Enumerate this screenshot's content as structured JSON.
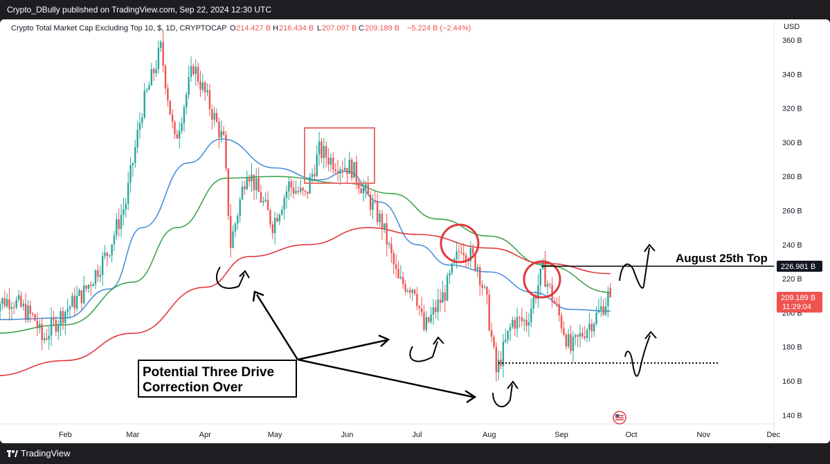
{
  "header": {
    "published": "Crypto_DBully published on TradingView.com, Sep 22, 2024 12:30 UTC"
  },
  "legend": {
    "symbol": "Crypto Total Market Cap Excluding Top 10, $, 1D, CRYPTOCAP",
    "open_label": "O",
    "open": "214.427 B",
    "high_label": "H",
    "high": "216.434 B",
    "low_label": "L",
    "low": "207.097 B",
    "close_label": "C",
    "close": "209.189 B",
    "change": "−5.224 B (−2.44%)"
  },
  "axis": {
    "currency": "USD",
    "y_ticks": [
      "360 B",
      "340 B",
      "320 B",
      "300 B",
      "280 B",
      "260 B",
      "240 B",
      "220 B",
      "200 B",
      "180 B",
      "160 B",
      "140 B"
    ],
    "x_ticks": [
      "Feb",
      "Mar",
      "Apr",
      "May",
      "Jun",
      "Jul",
      "Aug",
      "Sep",
      "Oct",
      "Nov",
      "Dec"
    ]
  },
  "price_labels": {
    "level": "226.981 B",
    "current": "209.189 B",
    "countdown": "11:29:04"
  },
  "annotations": {
    "august_top": "August 25th Top",
    "three_drive_line1": "Potential Three Drive",
    "three_drive_line2": "Correction Over"
  },
  "footer": {
    "brand": "TradingView"
  },
  "colors": {
    "up": "#26a69a",
    "down": "#ef5350",
    "ma_blue": "#4a90d9",
    "ma_green": "#3fa34d",
    "ma_red": "#e0393e",
    "circle": "#e0393e",
    "box": "#e87070"
  },
  "chart_data": {
    "type": "candlestick",
    "title": "Crypto Total Market Cap Excluding Top 10, $, 1D, CRYPTOCAP",
    "ylabel": "USD",
    "ylim": [
      130,
      370
    ],
    "x_ticks": [
      "Feb",
      "Mar",
      "Apr",
      "May",
      "Jun",
      "Jul",
      "Aug",
      "Sep",
      "Oct",
      "Nov",
      "Dec"
    ],
    "y_unit": "B",
    "price_path": [
      [
        "2024-01-01",
        205
      ],
      [
        "2024-01-10",
        208
      ],
      [
        "2024-01-20",
        196
      ],
      [
        "2024-01-23",
        184
      ],
      [
        "2024-02-01",
        200
      ],
      [
        "2024-02-10",
        212
      ],
      [
        "2024-02-20",
        235
      ],
      [
        "2024-02-28",
        265
      ],
      [
        "2024-03-06",
        320
      ],
      [
        "2024-03-14",
        355
      ],
      [
        "2024-03-20",
        300
      ],
      [
        "2024-03-28",
        345
      ],
      [
        "2024-04-03",
        325
      ],
      [
        "2024-04-10",
        300
      ],
      [
        "2024-04-13",
        240
      ],
      [
        "2024-04-20",
        285
      ],
      [
        "2024-05-01",
        252
      ],
      [
        "2024-05-08",
        275
      ],
      [
        "2024-05-15",
        268
      ],
      [
        "2024-05-21",
        295
      ],
      [
        "2024-05-28",
        288
      ],
      [
        "2024-06-04",
        285
      ],
      [
        "2024-06-10",
        270
      ],
      [
        "2024-06-17",
        252
      ],
      [
        "2024-06-24",
        218
      ],
      [
        "2024-07-01",
        215
      ],
      [
        "2024-07-05",
        190
      ],
      [
        "2024-07-14",
        212
      ],
      [
        "2024-07-21",
        240
      ],
      [
        "2024-07-28",
        228
      ],
      [
        "2024-08-01",
        205
      ],
      [
        "2024-08-05",
        165
      ],
      [
        "2024-08-12",
        195
      ],
      [
        "2024-08-18",
        195
      ],
      [
        "2024-08-25",
        225
      ],
      [
        "2024-09-01",
        198
      ],
      [
        "2024-09-06",
        178
      ],
      [
        "2024-09-12",
        190
      ],
      [
        "2024-09-18",
        200
      ],
      [
        "2024-09-22",
        209.189
      ]
    ],
    "last_ohlc": {
      "open": 214.427,
      "high": 216.434,
      "low": 207.097,
      "close": 209.189,
      "change": -5.224,
      "change_pct": -2.44
    },
    "moving_averages": [
      {
        "color": "blue",
        "points": [
          [
            "2024-01-01",
            196
          ],
          [
            "2024-02-01",
            197
          ],
          [
            "2024-02-20",
            214
          ],
          [
            "2024-03-05",
            250
          ],
          [
            "2024-03-25",
            288
          ],
          [
            "2024-04-08",
            302
          ],
          [
            "2024-05-01",
            285
          ],
          [
            "2024-05-20",
            278
          ],
          [
            "2024-06-01",
            283
          ],
          [
            "2024-06-15",
            265
          ],
          [
            "2024-07-01",
            240
          ],
          [
            "2024-07-15",
            228
          ],
          [
            "2024-08-01",
            224
          ],
          [
            "2024-08-20",
            212
          ],
          [
            "2024-09-05",
            202
          ],
          [
            "2024-09-22",
            201
          ]
        ]
      },
      {
        "color": "green",
        "points": [
          [
            "2024-01-01",
            188
          ],
          [
            "2024-02-01",
            193
          ],
          [
            "2024-03-01",
            218
          ],
          [
            "2024-03-20",
            250
          ],
          [
            "2024-04-10",
            279
          ],
          [
            "2024-05-01",
            280
          ],
          [
            "2024-06-01",
            276
          ],
          [
            "2024-06-20",
            270
          ],
          [
            "2024-07-10",
            255
          ],
          [
            "2024-08-01",
            245
          ],
          [
            "2024-08-25",
            228
          ],
          [
            "2024-09-22",
            212
          ]
        ]
      },
      {
        "color": "red",
        "points": [
          [
            "2024-01-01",
            163
          ],
          [
            "2024-02-01",
            172
          ],
          [
            "2024-03-01",
            188
          ],
          [
            "2024-04-01",
            215
          ],
          [
            "2024-04-20",
            233
          ],
          [
            "2024-05-15",
            240
          ],
          [
            "2024-06-10",
            250
          ],
          [
            "2024-07-01",
            246
          ],
          [
            "2024-08-01",
            238
          ],
          [
            "2024-08-25",
            229
          ],
          [
            "2024-09-22",
            223
          ]
        ]
      }
    ],
    "horizontal_levels": [
      {
        "value": 226.981,
        "label": "226.981 B",
        "style": "solid",
        "from": "2024-08-25"
      },
      {
        "value": 170,
        "style": "dotted",
        "from": "2024-08-05",
        "to": "2024-10-25"
      }
    ],
    "legend": "top-left",
    "grid": false
  }
}
